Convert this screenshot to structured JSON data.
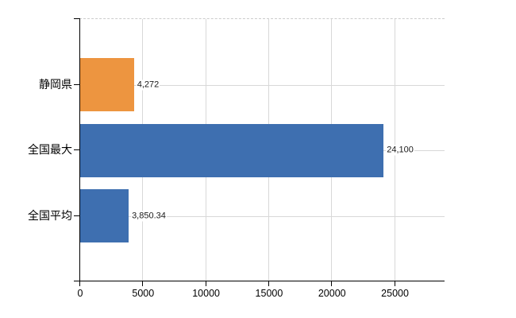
{
  "chart_data": {
    "type": "bar",
    "orientation": "horizontal",
    "title": "",
    "xlabel": "",
    "ylabel": "",
    "categories": [
      "静岡県",
      "全国最大",
      "全国平均"
    ],
    "values": [
      4272,
      24100,
      3850.34
    ],
    "value_labels": [
      "4,272",
      "24,100",
      "3,850.34"
    ],
    "bar_colors": [
      "#ED9540",
      "#3E6FB0",
      "#3E6FB0"
    ],
    "xlim": [
      0,
      29000
    ],
    "x_ticks": [
      0,
      5000,
      10000,
      15000,
      20000,
      25000
    ],
    "x_tick_labels": [
      "0",
      "5000",
      "10000",
      "15000",
      "20000",
      "25000"
    ],
    "grid": true,
    "legend": false
  },
  "colors": {
    "background": "#FFFFFF",
    "grid_line": "#D8D8D8",
    "plot_top_dashed_border": "#CCCCCC",
    "axis_line": "#000000",
    "bar_orange": "#ED9540",
    "bar_blue": "#3E6FB0",
    "value_label_text": "#1A1A1A",
    "category_label_text": "#000000",
    "tick_label_text": "#000000"
  }
}
